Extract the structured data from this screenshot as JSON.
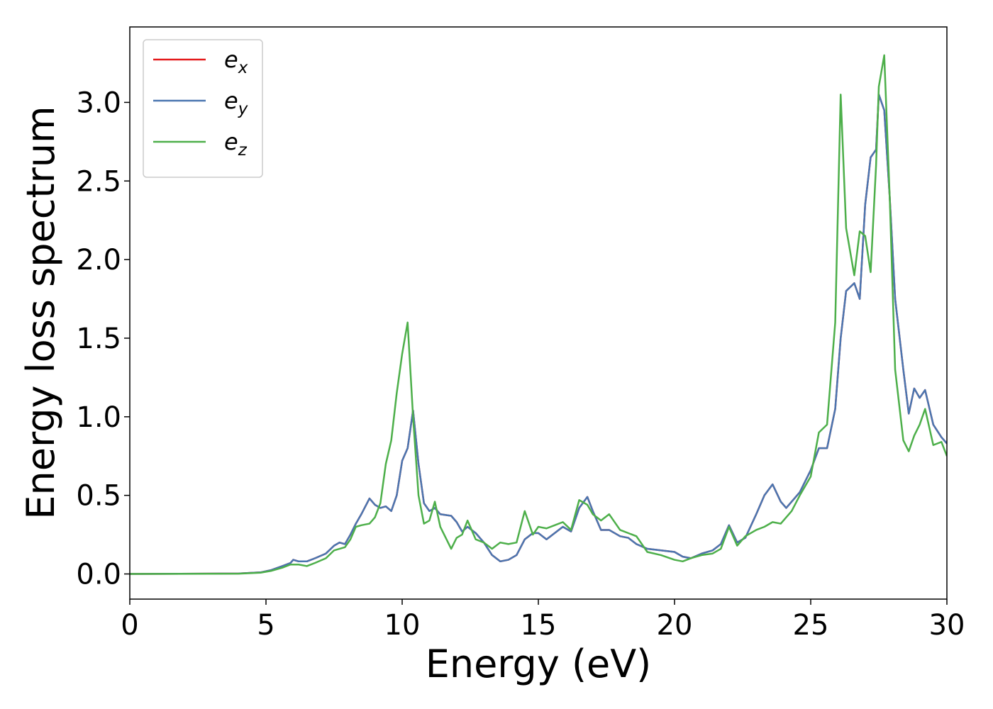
{
  "chart_data": {
    "type": "line",
    "xlabel": "Energy (eV)",
    "ylabel": "Energy loss spectrum",
    "x": [
      0,
      4,
      4.8,
      5.2,
      5.6,
      5.9,
      6,
      6.2,
      6.5,
      6.8,
      7.2,
      7.5,
      7.7,
      7.9,
      8.1,
      8.3,
      8.5,
      8.8,
      9,
      9.2,
      9.4,
      9.6,
      9.8,
      10,
      10.2,
      10.4,
      10.6,
      10.8,
      11,
      11.2,
      11.4,
      11.8,
      12,
      12.2,
      12.4,
      12.7,
      13,
      13.3,
      13.6,
      13.9,
      14.2,
      14.5,
      14.8,
      15,
      15.3,
      15.6,
      15.9,
      16.2,
      16.5,
      16.8,
      17,
      17.3,
      17.6,
      18,
      18.3,
      18.6,
      19,
      19.5,
      20,
      20.3,
      20.6,
      21,
      21.4,
      21.7,
      22,
      22.3,
      22.6,
      23,
      23.3,
      23.6,
      23.9,
      24.1,
      24.3,
      24.6,
      25,
      25.3,
      25.6,
      25.9,
      26.1,
      26.3,
      26.6,
      26.8,
      27,
      27.2,
      27.4,
      27.5,
      27.7,
      27.9,
      28.1,
      28.4,
      28.6,
      28.8,
      29,
      29.2,
      29.5,
      29.8,
      30
    ],
    "series": [
      {
        "name": "e_x",
        "color": "#e41a1c",
        "values": [
          0,
          0.003,
          0.01,
          0.025,
          0.05,
          0.07,
          0.09,
          0.08,
          0.08,
          0.1,
          0.13,
          0.18,
          0.2,
          0.19,
          0.25,
          0.32,
          0.38,
          0.48,
          0.44,
          0.42,
          0.43,
          0.4,
          0.5,
          0.72,
          0.8,
          1.04,
          0.7,
          0.45,
          0.4,
          0.42,
          0.38,
          0.37,
          0.33,
          0.27,
          0.3,
          0.26,
          0.2,
          0.12,
          0.08,
          0.09,
          0.12,
          0.22,
          0.26,
          0.26,
          0.22,
          0.26,
          0.3,
          0.27,
          0.42,
          0.49,
          0.4,
          0.28,
          0.28,
          0.24,
          0.23,
          0.19,
          0.16,
          0.15,
          0.14,
          0.11,
          0.1,
          0.13,
          0.15,
          0.19,
          0.31,
          0.2,
          0.23,
          0.38,
          0.5,
          0.57,
          0.46,
          0.42,
          0.46,
          0.52,
          0.66,
          0.8,
          0.8,
          1.05,
          1.5,
          1.8,
          1.85,
          1.75,
          2.35,
          2.65,
          2.7,
          3.05,
          2.95,
          2.4,
          1.75,
          1.3,
          1.02,
          1.18,
          1.12,
          1.17,
          0.95,
          0.87,
          0.83
        ]
      },
      {
        "name": "e_y",
        "color": "#4a76b0",
        "values": [
          0,
          0.003,
          0.01,
          0.025,
          0.05,
          0.07,
          0.09,
          0.08,
          0.08,
          0.1,
          0.13,
          0.18,
          0.2,
          0.19,
          0.25,
          0.32,
          0.38,
          0.48,
          0.44,
          0.42,
          0.43,
          0.4,
          0.5,
          0.72,
          0.8,
          1.04,
          0.7,
          0.45,
          0.4,
          0.42,
          0.38,
          0.37,
          0.33,
          0.27,
          0.3,
          0.26,
          0.2,
          0.12,
          0.08,
          0.09,
          0.12,
          0.22,
          0.26,
          0.26,
          0.22,
          0.26,
          0.3,
          0.27,
          0.42,
          0.49,
          0.4,
          0.28,
          0.28,
          0.24,
          0.23,
          0.19,
          0.16,
          0.15,
          0.14,
          0.11,
          0.1,
          0.13,
          0.15,
          0.19,
          0.31,
          0.2,
          0.23,
          0.38,
          0.5,
          0.57,
          0.46,
          0.42,
          0.46,
          0.52,
          0.66,
          0.8,
          0.8,
          1.05,
          1.5,
          1.8,
          1.85,
          1.75,
          2.35,
          2.65,
          2.7,
          3.05,
          2.95,
          2.4,
          1.75,
          1.3,
          1.02,
          1.18,
          1.12,
          1.17,
          0.95,
          0.87,
          0.83
        ]
      },
      {
        "name": "e_z",
        "color": "#4daf4a",
        "values": [
          0,
          0.002,
          0.008,
          0.02,
          0.04,
          0.06,
          0.06,
          0.06,
          0.05,
          0.07,
          0.1,
          0.15,
          0.16,
          0.17,
          0.22,
          0.3,
          0.31,
          0.32,
          0.36,
          0.45,
          0.7,
          0.85,
          1.15,
          1.4,
          1.6,
          1.0,
          0.5,
          0.32,
          0.34,
          0.46,
          0.3,
          0.16,
          0.23,
          0.25,
          0.34,
          0.22,
          0.2,
          0.16,
          0.2,
          0.19,
          0.2,
          0.4,
          0.25,
          0.3,
          0.29,
          0.31,
          0.33,
          0.28,
          0.47,
          0.44,
          0.38,
          0.34,
          0.38,
          0.28,
          0.26,
          0.24,
          0.14,
          0.12,
          0.09,
          0.08,
          0.1,
          0.12,
          0.13,
          0.16,
          0.3,
          0.18,
          0.24,
          0.28,
          0.3,
          0.33,
          0.32,
          0.36,
          0.4,
          0.5,
          0.62,
          0.9,
          0.95,
          1.6,
          3.05,
          2.2,
          1.9,
          2.18,
          2.15,
          1.92,
          2.6,
          3.1,
          3.3,
          2.4,
          1.3,
          0.85,
          0.78,
          0.88,
          0.95,
          1.05,
          0.82,
          0.84,
          0.75
        ]
      }
    ],
    "xlim": [
      0,
      30
    ],
    "xticks": [
      0,
      5,
      10,
      15,
      20,
      25,
      30
    ],
    "ylim": [
      -0.16,
      3.48
    ],
    "yticks": [
      {
        "value": 0,
        "label": "0.0"
      },
      0.5,
      {
        "value": 1,
        "label": "1.0"
      },
      1.5,
      {
        "value": 2,
        "label": "2.0"
      },
      2.5,
      {
        "value": 3,
        "label": "3.0"
      }
    ],
    "legend": "upper left"
  }
}
